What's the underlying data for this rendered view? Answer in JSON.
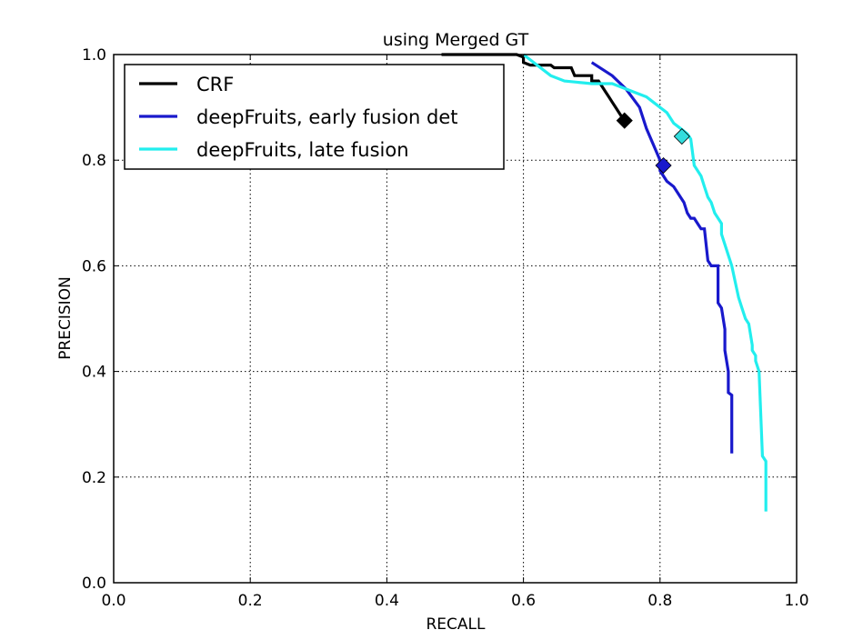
{
  "chart_data": {
    "type": "line",
    "title": "using Merged GT",
    "xlabel": "RECALL",
    "ylabel": "PRECISION",
    "xlim": [
      0.0,
      1.0
    ],
    "ylim": [
      0.0,
      1.0
    ],
    "xticks": [
      "0.0",
      "0.2",
      "0.4",
      "0.6",
      "0.8",
      "1.0"
    ],
    "yticks": [
      "0.0",
      "0.2",
      "0.4",
      "0.6",
      "0.8",
      "1.0"
    ],
    "grid": true,
    "legend_position": "top-left",
    "series": [
      {
        "name": "CRF",
        "color": "#000000",
        "marker_color": "#000000",
        "x": [
          0.48,
          0.59,
          0.6,
          0.6,
          0.61,
          0.64,
          0.645,
          0.67,
          0.675,
          0.7,
          0.7,
          0.71,
          0.72,
          0.725,
          0.73,
          0.735,
          0.74,
          0.745,
          0.75
        ],
        "y": [
          1.0,
          1.0,
          0.995,
          0.985,
          0.98,
          0.98,
          0.975,
          0.975,
          0.96,
          0.96,
          0.95,
          0.95,
          0.93,
          0.92,
          0.91,
          0.9,
          0.89,
          0.88,
          0.875
        ],
        "operating_point": [
          0.748,
          0.875
        ]
      },
      {
        "name": "deepFruits, early fusion det",
        "color": "#1919cc",
        "marker_color": "#1919cc",
        "x": [
          0.7,
          0.73,
          0.75,
          0.77,
          0.78,
          0.79,
          0.8,
          0.8,
          0.81,
          0.82,
          0.825,
          0.83,
          0.835,
          0.84,
          0.845,
          0.85,
          0.855,
          0.86,
          0.865,
          0.87,
          0.87,
          0.875,
          0.88,
          0.885,
          0.885,
          0.89,
          0.895,
          0.895,
          0.9,
          0.9,
          0.905,
          0.905
        ],
        "y": [
          0.985,
          0.96,
          0.935,
          0.9,
          0.86,
          0.83,
          0.8,
          0.78,
          0.76,
          0.75,
          0.74,
          0.73,
          0.72,
          0.7,
          0.69,
          0.69,
          0.68,
          0.67,
          0.67,
          0.61,
          0.61,
          0.6,
          0.6,
          0.6,
          0.53,
          0.52,
          0.48,
          0.44,
          0.4,
          0.36,
          0.355,
          0.245
        ],
        "operating_point": [
          0.805,
          0.79
        ]
      },
      {
        "name": "deepFruits, late fusion",
        "color": "#22eeee",
        "marker_color": "#33dddd",
        "x": [
          0.6,
          0.62,
          0.64,
          0.66,
          0.7,
          0.73,
          0.76,
          0.78,
          0.79,
          0.8,
          0.81,
          0.815,
          0.82,
          0.83,
          0.84,
          0.845,
          0.85,
          0.86,
          0.865,
          0.87,
          0.875,
          0.88,
          0.89,
          0.89,
          0.9,
          0.905,
          0.91,
          0.915,
          0.92,
          0.925,
          0.93,
          0.935,
          0.935,
          0.94,
          0.94,
          0.945,
          0.95,
          0.955,
          0.955
        ],
        "y": [
          1.0,
          0.98,
          0.96,
          0.95,
          0.945,
          0.945,
          0.93,
          0.92,
          0.91,
          0.9,
          0.89,
          0.88,
          0.87,
          0.86,
          0.85,
          0.84,
          0.79,
          0.77,
          0.75,
          0.73,
          0.72,
          0.7,
          0.68,
          0.66,
          0.62,
          0.6,
          0.57,
          0.54,
          0.52,
          0.5,
          0.49,
          0.45,
          0.44,
          0.43,
          0.42,
          0.4,
          0.24,
          0.23,
          0.135
        ],
        "operating_point": [
          0.832,
          0.845
        ]
      }
    ]
  }
}
